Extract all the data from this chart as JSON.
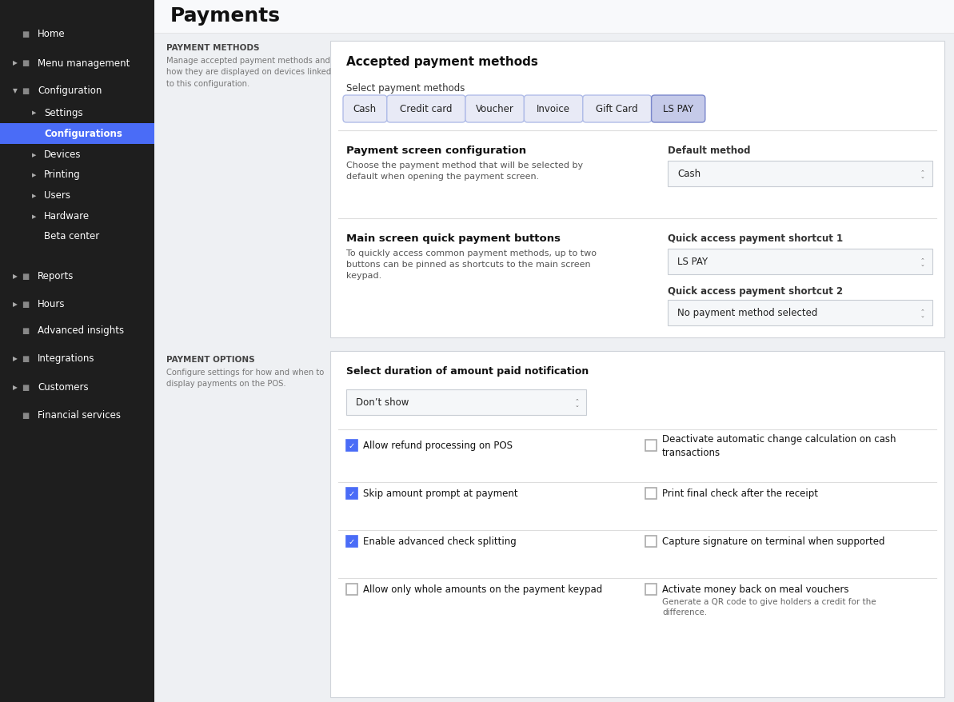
{
  "sidebar_bg": "#1e1e1e",
  "main_bg": "#eef0f3",
  "content_bg": "#ffffff",
  "sidebar_active_color": "#4a6cf7",
  "sidebar_text_color": "#ffffff",
  "page_title": "Payments",
  "section1_title": "PAYMENT METHODS",
  "section1_desc": "Manage accepted payment methods and\nhow they are displayed on devices linked\nto this configuration.",
  "card1_title": "Accepted payment methods",
  "payment_methods": [
    "Cash",
    "Credit card",
    "Voucher",
    "Invoice",
    "Gift Card",
    "LS PAY"
  ],
  "pill_color_normal": "#e8eaf6",
  "pill_color_highlighted": "#c5cae9",
  "pill_border_normal": "#b0bce8",
  "pill_border_highlighted": "#7986cb",
  "select_label": "Select payment methods",
  "payment_screen_title": "Payment screen configuration",
  "payment_screen_desc": "Choose the payment method that will be selected by\ndefault when opening the payment screen.",
  "default_method_label": "Default method",
  "default_method_value": "Cash",
  "quick_payment_title": "Main screen quick payment buttons",
  "quick_payment_desc": "To quickly access common payment methods, up to two\nbuttons can be pinned as shortcuts to the main screen\nkeypad.",
  "shortcut1_label": "Quick access payment shortcut 1",
  "shortcut1_value": "LS PAY",
  "shortcut2_label": "Quick access payment shortcut 2",
  "shortcut2_value": "No payment method selected",
  "section2_title": "PAYMENT OPTIONS",
  "section2_desc": "Configure settings for how and when to\ndisplay payments on the POS.",
  "card2_title": "Select duration of amount paid notification",
  "card2_dropdown": "Don’t show",
  "checkboxes": [
    {
      "label": "Allow refund processing on POS",
      "checked": true,
      "row": 0,
      "col": 0
    },
    {
      "label": "Deactivate automatic change calculation on cash\ntransactions",
      "checked": false,
      "row": 0,
      "col": 1
    },
    {
      "label": "Skip amount prompt at payment",
      "checked": true,
      "row": 1,
      "col": 0
    },
    {
      "label": "Print final check after the receipt",
      "checked": false,
      "row": 1,
      "col": 1
    },
    {
      "label": "Enable advanced check splitting",
      "checked": true,
      "row": 2,
      "col": 0
    },
    {
      "label": "Capture signature on terminal when supported",
      "checked": false,
      "row": 2,
      "col": 1
    },
    {
      "label": "Allow only whole amounts on the payment keypad",
      "checked": false,
      "row": 3,
      "col": 0
    },
    {
      "label": "Activate money back on meal vouchers",
      "checked": false,
      "row": 3,
      "col": 1,
      "sublabel": "Generate a QR code to give holders a credit for the\ndifference."
    }
  ],
  "checkbox_color": "#4a6cf7",
  "divider_color": "#dddddd",
  "sidebar_items": [
    {
      "label": "Home",
      "level": 0,
      "arrow": false,
      "has_icon": true
    },
    {
      "label": "Menu management",
      "level": 0,
      "arrow": true,
      "has_icon": true
    },
    {
      "label": "Configuration",
      "level": 0,
      "arrow": true,
      "arrow_down": true,
      "has_icon": true
    },
    {
      "label": "Settings",
      "level": 1,
      "arrow": true,
      "has_icon": false
    },
    {
      "label": "Configurations",
      "level": 1,
      "arrow": false,
      "has_icon": false,
      "active": true
    },
    {
      "label": "Devices",
      "level": 1,
      "arrow": true,
      "has_icon": false
    },
    {
      "label": "Printing",
      "level": 1,
      "arrow": true,
      "has_icon": false
    },
    {
      "label": "Users",
      "level": 1,
      "arrow": true,
      "has_icon": false
    },
    {
      "label": "Hardware",
      "level": 1,
      "arrow": true,
      "has_icon": false
    },
    {
      "label": "Beta center",
      "level": 1,
      "arrow": false,
      "has_icon": false
    },
    {
      "label": "Reports",
      "level": 0,
      "arrow": true,
      "has_icon": true
    },
    {
      "label": "Hours",
      "level": 0,
      "arrow": true,
      "has_icon": true
    },
    {
      "label": "Advanced insights",
      "level": 0,
      "arrow": false,
      "has_icon": true
    },
    {
      "label": "Integrations",
      "level": 0,
      "arrow": true,
      "has_icon": true
    },
    {
      "label": "Customers",
      "level": 0,
      "arrow": true,
      "has_icon": true
    },
    {
      "label": "Financial services",
      "level": 0,
      "arrow": false,
      "has_icon": true
    }
  ],
  "sidebar_y_positions": [
    43,
    79,
    114,
    141,
    168,
    194,
    219,
    245,
    271,
    296,
    346,
    381,
    414,
    449,
    485,
    520
  ]
}
